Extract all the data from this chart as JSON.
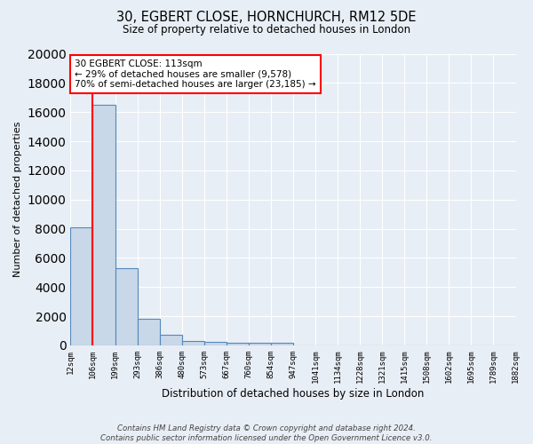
{
  "title_line1": "30, EGBERT CLOSE, HORNCHURCH, RM12 5DE",
  "title_line2": "Size of property relative to detached houses in London",
  "xlabel": "Distribution of detached houses by size in London",
  "ylabel": "Number of detached properties",
  "bin_labels": [
    "12sqm",
    "106sqm",
    "199sqm",
    "293sqm",
    "386sqm",
    "480sqm",
    "573sqm",
    "667sqm",
    "760sqm",
    "854sqm",
    "947sqm",
    "1041sqm",
    "1134sqm",
    "1228sqm",
    "1321sqm",
    "1415sqm",
    "1508sqm",
    "1602sqm",
    "1695sqm",
    "1789sqm",
    "1882sqm"
  ],
  "bar_heights": [
    8100,
    16500,
    5300,
    1850,
    700,
    300,
    220,
    200,
    180,
    160,
    0,
    0,
    0,
    0,
    0,
    0,
    0,
    0,
    0,
    0
  ],
  "bar_color": "#c8d8e8",
  "bar_edge_color": "#5588bb",
  "annotation_text": "30 EGBERT CLOSE: 113sqm\n← 29% of detached houses are smaller (9,578)\n70% of semi-detached houses are larger (23,185) →",
  "annotation_box_color": "white",
  "annotation_box_edge": "red",
  "property_line_x": 1,
  "property_line_color": "red",
  "ylim": [
    0,
    20000
  ],
  "yticks": [
    0,
    2000,
    4000,
    6000,
    8000,
    10000,
    12000,
    14000,
    16000,
    18000,
    20000
  ],
  "footnote": "Contains HM Land Registry data © Crown copyright and database right 2024.\nContains public sector information licensed under the Open Government Licence v3.0.",
  "bg_color": "#e8eef5",
  "plot_bg_color": "#e8eef5",
  "grid_color": "white"
}
